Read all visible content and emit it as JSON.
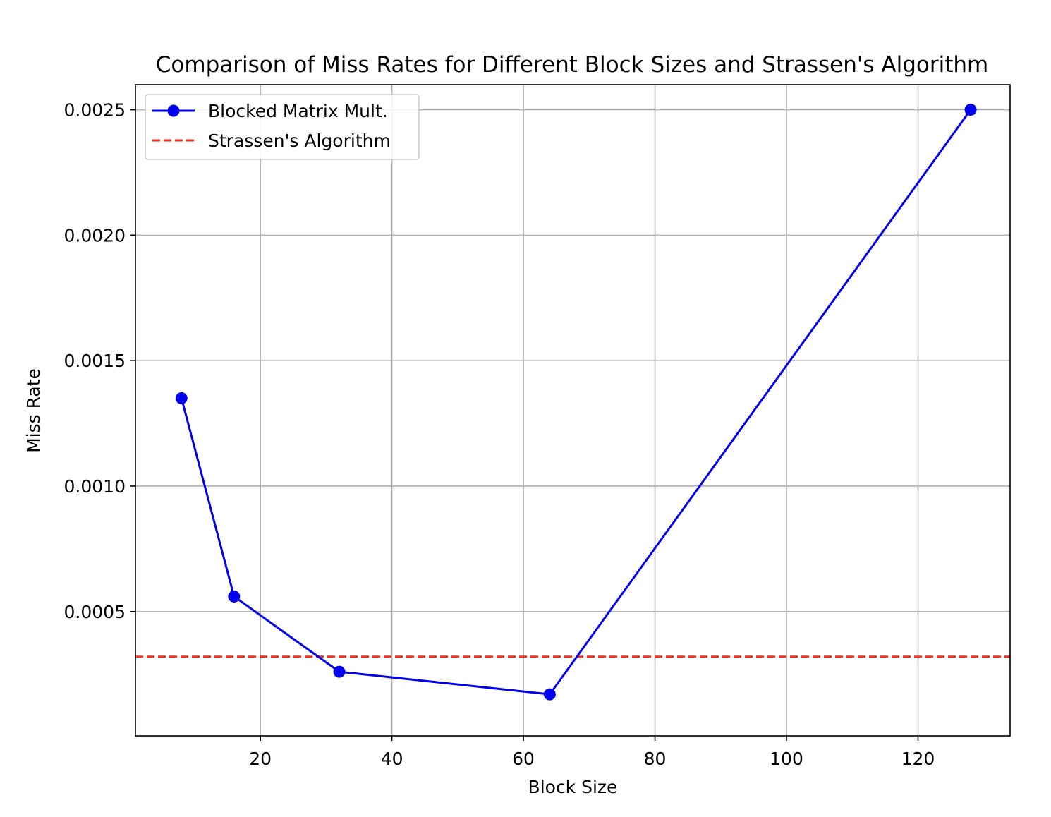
{
  "chart_data": {
    "type": "line",
    "title": "Comparison of Miss Rates for Different Block Sizes and Strassen's Algorithm",
    "xlabel": "Block Size",
    "ylabel": "Miss Rate",
    "xlim": [
      1.0,
      134.0
    ],
    "ylim": [
      4.5e-06,
      0.0026
    ],
    "xticks": [
      20,
      40,
      60,
      80,
      100,
      120
    ],
    "xtick_labels": [
      "20",
      "40",
      "60",
      "80",
      "100",
      "120"
    ],
    "yticks": [
      0.0005,
      0.001,
      0.0015,
      0.002,
      0.0025
    ],
    "ytick_labels": [
      "0.0005",
      "0.0010",
      "0.0015",
      "0.0020",
      "0.0025"
    ],
    "grid": true,
    "legend_position": "upper-left",
    "series": [
      {
        "name": "Blocked Matrix Mult.",
        "style": "solid-with-markers",
        "color": "#0000ee",
        "x": [
          8,
          16,
          32,
          64,
          128
        ],
        "y": [
          0.00135,
          0.00056,
          0.00026,
          0.00017,
          0.0025
        ]
      },
      {
        "name": "Strassen's Algorithm",
        "style": "dashed-horizontal",
        "color": "#ee3322",
        "y": 0.00032
      }
    ]
  }
}
